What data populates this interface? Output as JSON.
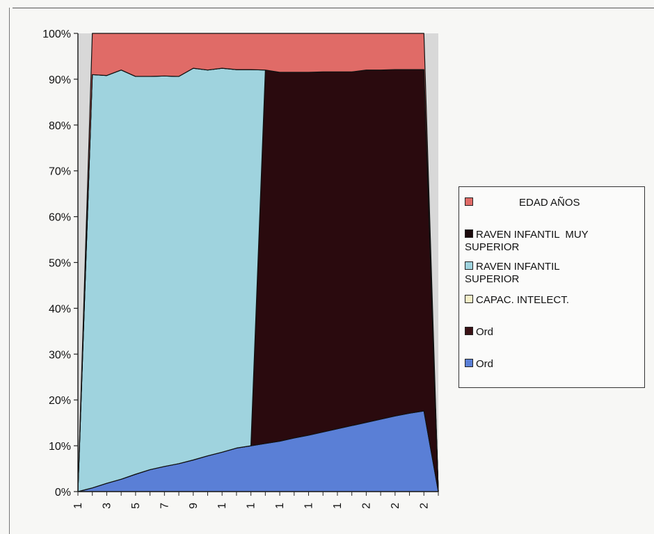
{
  "chart_data": {
    "type": "area",
    "stacked_percent": true,
    "x": [
      "1",
      "",
      "3",
      "",
      "5",
      "",
      "7",
      "",
      "9",
      "",
      "1",
      "",
      "1",
      "",
      "1",
      "",
      "1",
      "",
      "1",
      "",
      "2",
      "",
      "2",
      "",
      "2",
      ""
    ],
    "x_tick_labels": [
      "1",
      "3",
      "5",
      "7",
      "9",
      "1",
      "1",
      "1",
      "1",
      "1",
      "2",
      "2",
      "2"
    ],
    "y_tick_labels": [
      "0%",
      "10%",
      "20%",
      "30%",
      "40%",
      "50%",
      "60%",
      "70%",
      "80%",
      "90%",
      "100%"
    ],
    "ylim": [
      0,
      100
    ],
    "series": [
      {
        "name": "Ord",
        "color": "#5a7fd6",
        "values": [
          0,
          0.8,
          1.8,
          2.7,
          3.8,
          4.8,
          5.5,
          6.1,
          6.9,
          7.8,
          8.6,
          9.5,
          10.0,
          10.5,
          11.0,
          11.7,
          12.3,
          13.0,
          13.7,
          14.4,
          15.1,
          15.8,
          16.5,
          17.1,
          17.6,
          0
        ]
      },
      {
        "name": "Ord",
        "color": "#2a0a0e",
        "values": [
          0,
          0,
          0,
          0,
          0,
          0,
          0,
          0,
          0,
          0,
          0,
          0,
          0,
          81.5,
          80.5,
          79.8,
          79.2,
          78.6,
          77.9,
          77.2,
          76.9,
          76.2,
          75.6,
          75.0,
          74.5,
          0
        ]
      },
      {
        "name": "CAPAC. INTELECT.",
        "color": "#f6efc8",
        "values": [
          0,
          0,
          0,
          0,
          0,
          0,
          0,
          0,
          0,
          0,
          0,
          0,
          0,
          0,
          0,
          0,
          0,
          0,
          0,
          0,
          0,
          0,
          0,
          0,
          0,
          0
        ]
      },
      {
        "name": "RAVEN INFANTIL SUPERIOR",
        "color": "#9fd3de",
        "values": [
          0,
          90.2,
          89.0,
          89.3,
          86.8,
          85.8,
          85.2,
          84.5,
          85.5,
          84.2,
          83.8,
          82.6,
          82.1,
          0,
          0,
          0,
          0,
          0,
          0,
          0,
          0,
          0,
          0,
          0,
          0,
          0
        ]
      },
      {
        "name": "RAVEN INFANTIL MUY SUPERIOR",
        "color": "#1b0a0c",
        "values": [
          0,
          0,
          0,
          0,
          0,
          0,
          0,
          0,
          0,
          0,
          0,
          0,
          0,
          0,
          0,
          0,
          0,
          0,
          0,
          0,
          0,
          0,
          0,
          0,
          0,
          0
        ]
      },
      {
        "name": "EDAD AÑOS",
        "color": "#e06b67",
        "values": [
          0,
          9.0,
          9.2,
          8.0,
          9.4,
          9.4,
          9.3,
          9.4,
          7.6,
          8.0,
          7.6,
          7.9,
          7.9,
          8.0,
          8.5,
          8.5,
          8.5,
          8.4,
          8.4,
          8.4,
          8.0,
          8.0,
          7.9,
          7.9,
          7.9,
          0
        ]
      }
    ],
    "legend": {
      "position": "right",
      "items": [
        {
          "text": "EDAD AÑOS",
          "color": "#e06b67"
        },
        {
          "text": "RAVEN INFANTIL  MUY\nSUPERIOR",
          "color": "#1b0a0c"
        },
        {
          "text": "RAVEN INFANTIL\nSUPERIOR",
          "color": "#9fd3de"
        },
        {
          "text": "CAPAC. INTELECT.",
          "color": "#f6efc8"
        },
        {
          "text": "Ord",
          "color": "#3a1216"
        },
        {
          "text": "Ord",
          "color": "#5a7fd6"
        }
      ]
    },
    "grid": false,
    "plot_background": "#d8d8d8"
  }
}
